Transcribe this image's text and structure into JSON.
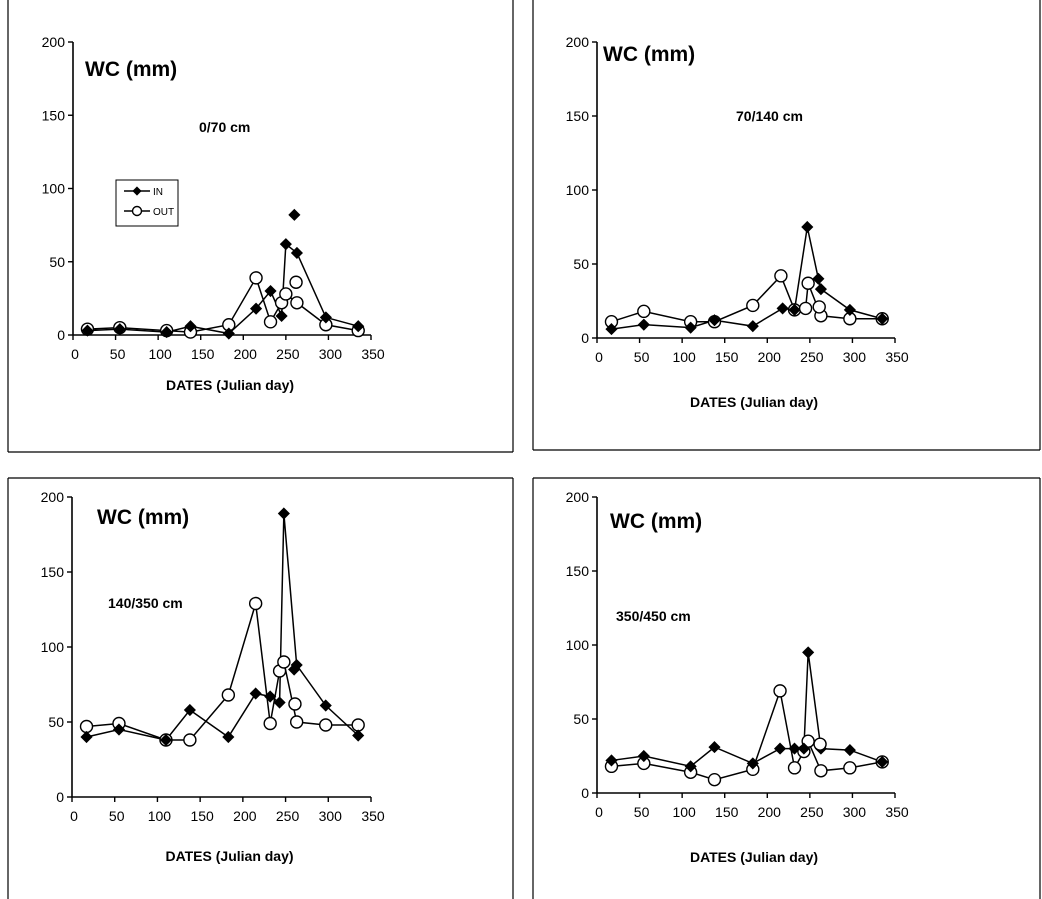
{
  "chart_data": [
    {
      "type": "line",
      "panel": "top-left",
      "annotation": "0/70 cm",
      "ylabel": "WC (mm)",
      "xlabel": "DATES (Julian day)",
      "xlim": [
        0,
        350
      ],
      "ylim": [
        0,
        200
      ],
      "xticks": [
        "0",
        "50",
        "100",
        "150",
        "200",
        "250",
        "300",
        "350"
      ],
      "yticks": [
        "0",
        "50",
        "100",
        "150",
        "200"
      ],
      "legend": {
        "placement": "upper-left",
        "entries": [
          "IN",
          "OUT"
        ]
      },
      "series": [
        {
          "name": "IN",
          "marker": "filled-diamond",
          "x": [
            17,
            55,
            110,
            138,
            183,
            215,
            232,
            245,
            250,
            263,
            297,
            335
          ],
          "y": [
            3,
            4,
            2,
            6,
            1,
            18,
            30,
            13,
            62,
            56,
            12,
            6
          ]
        },
        {
          "name": "OUT",
          "marker": "open-circle",
          "x": [
            17,
            55,
            110,
            138,
            183,
            215,
            232,
            245,
            250,
            263,
            297,
            335
          ],
          "y": [
            4,
            5,
            3,
            2,
            7,
            39,
            9,
            22,
            28,
            22,
            7,
            3
          ]
        }
      ],
      "extra_points": [
        {
          "series": "IN",
          "x": [
            260
          ],
          "y": [
            82
          ]
        },
        {
          "series": "OUT",
          "x": [
            262
          ],
          "y": [
            36
          ]
        }
      ]
    },
    {
      "type": "line",
      "panel": "top-right",
      "annotation": "70/140 cm",
      "ylabel": "WC (mm)",
      "xlabel": "DATES (Julian day)",
      "xlim": [
        0,
        350
      ],
      "ylim": [
        0,
        200
      ],
      "xticks": [
        "0",
        "50",
        "100",
        "150",
        "200",
        "250",
        "300",
        "350"
      ],
      "yticks": [
        "0",
        "50",
        "100",
        "150",
        "200"
      ],
      "series": [
        {
          "name": "IN",
          "marker": "filled-diamond",
          "x": [
            17,
            55,
            110,
            138,
            183,
            218,
            232,
            247,
            260,
            263,
            297,
            335
          ],
          "y": [
            6,
            9,
            7,
            12,
            8,
            20,
            19,
            75,
            40,
            33,
            19,
            13
          ]
        },
        {
          "name": "OUT",
          "marker": "open-circle",
          "x": [
            17,
            55,
            110,
            138,
            183,
            216,
            232,
            245,
            248,
            263,
            297,
            335
          ],
          "y": [
            11,
            18,
            11,
            11,
            22,
            42,
            19,
            20,
            37,
            15,
            13,
            13
          ]
        }
      ],
      "extra_points": [
        {
          "series": "OUT",
          "x": [
            261
          ],
          "y": [
            21
          ]
        }
      ]
    },
    {
      "type": "line",
      "panel": "bottom-left",
      "annotation": "140/350 cm",
      "ylabel": "WC (mm)",
      "xlabel": "DATES (Julian day)",
      "xlim": [
        0,
        350
      ],
      "ylim": [
        0,
        200
      ],
      "xticks": [
        "0",
        "50",
        "100",
        "150",
        "200",
        "250",
        "300",
        "350"
      ],
      "yticks": [
        "0",
        "50",
        "100",
        "150",
        "200"
      ],
      "series": [
        {
          "name": "IN",
          "marker": "filled-diamond",
          "x": [
            17,
            55,
            110,
            138,
            183,
            215,
            232,
            243,
            248,
            263,
            297,
            335
          ],
          "y": [
            40,
            45,
            38,
            58,
            40,
            69,
            67,
            63,
            189,
            88,
            61,
            41
          ]
        },
        {
          "name": "OUT",
          "marker": "open-circle",
          "x": [
            17,
            55,
            110,
            138,
            183,
            215,
            232,
            243,
            248,
            263,
            297,
            335
          ],
          "y": [
            47,
            49,
            38,
            38,
            68,
            129,
            49,
            84,
            90,
            50,
            48,
            48
          ]
        }
      ],
      "extra_points": [
        {
          "series": "IN",
          "x": [
            260
          ],
          "y": [
            85
          ]
        },
        {
          "series": "OUT",
          "x": [
            261
          ],
          "y": [
            62
          ]
        }
      ]
    },
    {
      "type": "line",
      "panel": "bottom-right",
      "annotation": "350/450 cm",
      "ylabel": "WC (mm)",
      "xlabel": "DATES (Julian day)",
      "xlim": [
        0,
        350
      ],
      "ylim": [
        0,
        200
      ],
      "xticks": [
        "0",
        "50",
        "100",
        "150",
        "200",
        "250",
        "300",
        "350"
      ],
      "yticks": [
        "0",
        "50",
        "100",
        "150",
        "200"
      ],
      "series": [
        {
          "name": "IN",
          "marker": "filled-diamond",
          "x": [
            17,
            55,
            110,
            138,
            183,
            215,
            232,
            243,
            248,
            263,
            297,
            335
          ],
          "y": [
            22,
            25,
            18,
            31,
            20,
            30,
            30,
            30,
            95,
            30,
            29,
            21
          ]
        },
        {
          "name": "OUT",
          "marker": "open-circle",
          "x": [
            17,
            55,
            110,
            138,
            183,
            215,
            232,
            243,
            248,
            263,
            297,
            335
          ],
          "y": [
            18,
            20,
            14,
            9,
            16,
            69,
            17,
            28,
            35,
            15,
            17,
            21
          ]
        }
      ],
      "extra_points": [
        {
          "series": "OUT",
          "x": [
            262
          ],
          "y": [
            33
          ]
        }
      ]
    }
  ]
}
